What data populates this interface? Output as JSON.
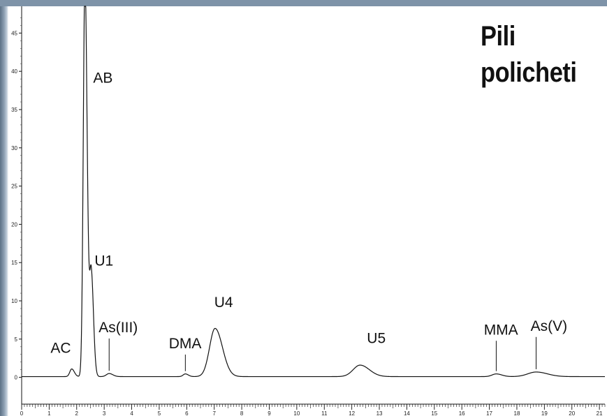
{
  "title_lines": [
    "Pili",
    "policheti"
  ],
  "chart_data": {
    "type": "line",
    "title": "Pili policheti",
    "xlabel": "",
    "ylabel": "",
    "xlim": [
      0,
      21.2
    ],
    "ylim": [
      -3.5,
      48.5
    ],
    "x_major_ticks": [
      0,
      1,
      2,
      3,
      4,
      5,
      6,
      7,
      8,
      9,
      10,
      11,
      12,
      13,
      14,
      15,
      16,
      17,
      18,
      19,
      20,
      21
    ],
    "y_major_ticks": [
      0,
      5,
      10,
      15,
      20,
      25,
      30,
      35,
      40,
      45
    ],
    "grid": false,
    "legend": "none",
    "line_color": "#111111",
    "series": [
      {
        "baseline": 0.1,
        "peaks": [
          {
            "label": "AC",
            "x": 1.82,
            "height": 1.0,
            "width": 0.07
          },
          {
            "label": "AB",
            "x": 2.3,
            "height": 52,
            "width": 0.06
          },
          {
            "label": "U1",
            "x": 2.53,
            "height": 13.5,
            "width": 0.06
          },
          {
            "label": "As(III)",
            "x": 3.18,
            "height": 0.4,
            "width": 0.1
          },
          {
            "label": "DMA",
            "x": 5.95,
            "height": 0.35,
            "width": 0.08
          },
          {
            "label": "U4",
            "x": 7.03,
            "height": 6.3,
            "width": 0.2
          },
          {
            "label": "U5",
            "x": 12.3,
            "height": 1.5,
            "width": 0.25
          },
          {
            "label": "MMA",
            "x": 17.25,
            "height": 0.35,
            "width": 0.15
          },
          {
            "label": "As(V)",
            "x": 18.7,
            "height": 0.6,
            "width": 0.3
          }
        ]
      }
    ],
    "annotations": [
      {
        "text": "AB",
        "x": 2.6,
        "y": 38.5,
        "marker": false
      },
      {
        "text": "U1",
        "x": 2.65,
        "y": 14.6,
        "marker": false
      },
      {
        "text": "AC",
        "x": 1.05,
        "y": 3.2,
        "marker": false
      },
      {
        "text": "As(III)",
        "x": 2.8,
        "y": 5.9,
        "marker": true
      },
      {
        "text": "DMA",
        "x": 5.35,
        "y": 3.8,
        "marker": true
      },
      {
        "text": "U4",
        "x": 7.0,
        "y": 9.2,
        "marker": false
      },
      {
        "text": "U5",
        "x": 12.55,
        "y": 4.5,
        "marker": false
      },
      {
        "text": "MMA",
        "x": 16.8,
        "y": 5.6,
        "marker": true
      },
      {
        "text": "As(V)",
        "x": 18.5,
        "y": 6.1,
        "marker": true
      }
    ]
  }
}
